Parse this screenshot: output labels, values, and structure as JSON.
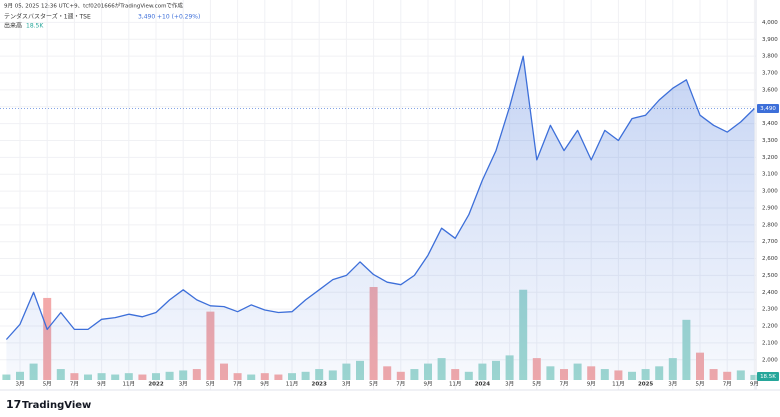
{
  "header": {
    "created": "9月 05, 2025 12:36 UTC+9、tcf0201666がTradingView.comで作成",
    "symbol": "テンダスバスターズ・1週・TSE",
    "last": "3,490",
    "change": "+10 (+0.29%)",
    "volume_title": "出来高",
    "volume_last": "18.5K",
    "logo": "TradingView"
  },
  "chart_data": {
    "type": "area",
    "color": "#3d6fd9",
    "x": [
      "2021-02",
      "2021-03",
      "2021-04",
      "2021-05",
      "2021-06",
      "2021-07",
      "2021-08",
      "2021-09",
      "2021-10",
      "2021-11",
      "2021-12",
      "2022-01",
      "2022-02",
      "2022-03",
      "2022-04",
      "2022-05",
      "2022-06",
      "2022-07",
      "2022-08",
      "2022-09",
      "2022-10",
      "2022-11",
      "2022-12",
      "2023-01",
      "2023-02",
      "2023-03",
      "2023-04",
      "2023-05",
      "2023-06",
      "2023-07",
      "2023-08",
      "2023-09",
      "2023-10",
      "2023-11",
      "2023-12",
      "2024-01",
      "2024-02",
      "2024-03",
      "2024-04",
      "2024-05",
      "2024-06",
      "2024-07",
      "2024-08",
      "2024-09",
      "2024-10",
      "2024-11",
      "2024-12",
      "2025-01",
      "2025-02",
      "2025-03",
      "2025-04",
      "2025-05",
      "2025-06",
      "2025-07",
      "2025-08",
      "2025-09"
    ],
    "values": [
      2120,
      2210,
      2400,
      2180,
      2280,
      2180,
      2180,
      2240,
      2250,
      2270,
      2255,
      2280,
      2355,
      2415,
      2355,
      2320,
      2315,
      2285,
      2325,
      2295,
      2280,
      2285,
      2355,
      2415,
      2475,
      2500,
      2580,
      2505,
      2460,
      2445,
      2500,
      2620,
      2780,
      2720,
      2860,
      3065,
      3240,
      3500,
      3800,
      3185,
      3390,
      3240,
      3360,
      3185,
      3360,
      3300,
      3430,
      3450,
      3540,
      3610,
      3660,
      3450,
      3390,
      3350,
      3410,
      3490
    ],
    "volume": {
      "up_color": "#9fd8cf",
      "down_color": "#f3a9a9",
      "values": [
        20,
        30,
        60,
        300,
        40,
        25,
        20,
        25,
        20,
        25,
        20,
        25,
        30,
        35,
        40,
        250,
        60,
        25,
        20,
        25,
        20,
        25,
        30,
        40,
        35,
        60,
        70,
        340,
        50,
        30,
        40,
        60,
        80,
        40,
        30,
        60,
        70,
        90,
        330,
        80,
        50,
        40,
        60,
        50,
        40,
        35,
        30,
        40,
        50,
        80,
        220,
        100,
        40,
        30,
        35,
        18.5
      ]
    },
    "last_price": {
      "value": 3490,
      "label": "3,490"
    },
    "ylim": [
      1880,
      4050
    ],
    "yticks": [
      {
        "value": 2000,
        "label": "2,000"
      },
      {
        "value": 2100,
        "label": "2,100"
      },
      {
        "value": 2200,
        "label": "2,200"
      },
      {
        "value": 2300,
        "label": "2,300"
      },
      {
        "value": 2400,
        "label": "2,400"
      },
      {
        "value": 2500,
        "label": "2,500"
      },
      {
        "value": 2600,
        "label": "2,600"
      },
      {
        "value": 2700,
        "label": "2,700"
      },
      {
        "value": 2800,
        "label": "2,800"
      },
      {
        "value": 2900,
        "label": "2,900"
      },
      {
        "value": 3000,
        "label": "3,000"
      },
      {
        "value": 3100,
        "label": "3,100"
      },
      {
        "value": 3200,
        "label": "3,200"
      },
      {
        "value": 3300,
        "label": "3,300"
      },
      {
        "value": 3400,
        "label": "3,400"
      },
      {
        "value": 3500,
        "label": "3,500"
      },
      {
        "value": 3600,
        "label": "3,600"
      },
      {
        "value": 3700,
        "label": "3,700"
      },
      {
        "value": 3800,
        "label": "3,800"
      },
      {
        "value": 3900,
        "label": "3,900"
      },
      {
        "value": 4000,
        "label": "4,000"
      }
    ],
    "xticks": [
      {
        "value": "2021-03",
        "label": "3月"
      },
      {
        "value": "2021-05",
        "label": "5月"
      },
      {
        "value": "2021-07",
        "label": "7月"
      },
      {
        "value": "2021-09",
        "label": "9月"
      },
      {
        "value": "2021-11",
        "label": "11月"
      },
      {
        "value": "2022-01",
        "label": "2022"
      },
      {
        "value": "2022-03",
        "label": "3月"
      },
      {
        "value": "2022-05",
        "label": "5月"
      },
      {
        "value": "2022-07",
        "label": "7月"
      },
      {
        "value": "2022-09",
        "label": "9月"
      },
      {
        "value": "2022-11",
        "label": "11月"
      },
      {
        "value": "2023-01",
        "label": "2023"
      },
      {
        "value": "2023-03",
        "label": "3月"
      },
      {
        "value": "2023-05",
        "label": "5月"
      },
      {
        "value": "2023-07",
        "label": "7月"
      },
      {
        "value": "2023-09",
        "label": "9月"
      },
      {
        "value": "2023-11",
        "label": "11月"
      },
      {
        "value": "2024-01",
        "label": "2024"
      },
      {
        "value": "2024-03",
        "label": "3月"
      },
      {
        "value": "2024-05",
        "label": "5月"
      },
      {
        "value": "2024-07",
        "label": "7月"
      },
      {
        "value": "2024-09",
        "label": "9月"
      },
      {
        "value": "2024-11",
        "label": "11月"
      },
      {
        "value": "2025-01",
        "label": "2025"
      },
      {
        "value": "2025-03",
        "label": "3月"
      },
      {
        "value": "2025-05",
        "label": "5月"
      },
      {
        "value": "2025-07",
        "label": "7月"
      },
      {
        "value": "2025-09",
        "label": "9月"
      }
    ],
    "grid": true
  }
}
